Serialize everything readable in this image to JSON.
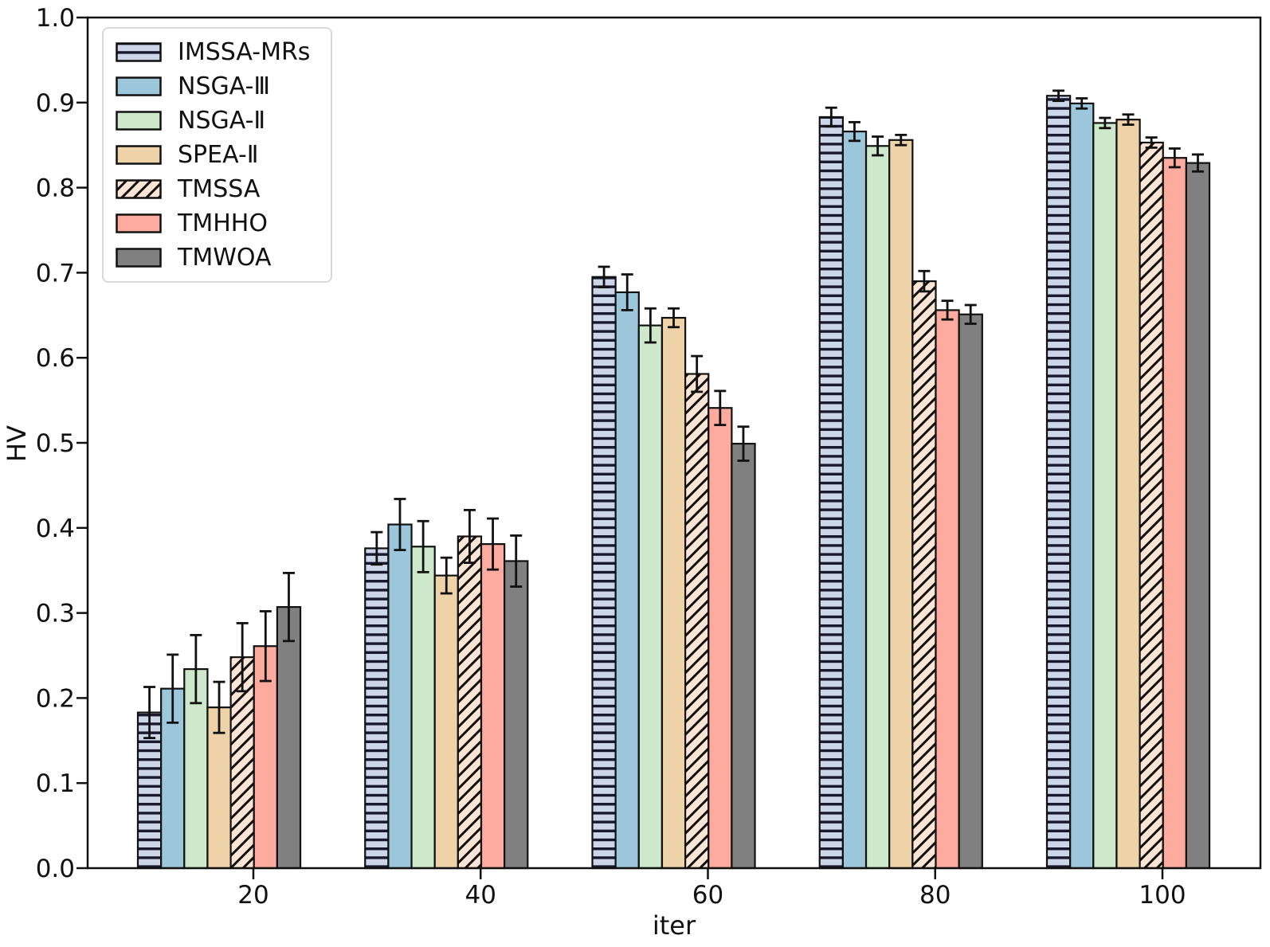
{
  "chart_data": {
    "type": "bar",
    "title": "",
    "xlabel": "iter",
    "ylabel": "HV",
    "categories": [
      20,
      40,
      60,
      80,
      100
    ],
    "xtick_labels": [
      "20",
      "40",
      "60",
      "80",
      "100"
    ],
    "ylim": [
      0.0,
      1.0
    ],
    "yticks": [
      0.0,
      0.1,
      0.2,
      0.3,
      0.4,
      0.5,
      0.6,
      0.7,
      0.8,
      0.9,
      1.0
    ],
    "ytick_labels": [
      "0.0",
      "0.1",
      "0.2",
      "0.3",
      "0.4",
      "0.5",
      "0.6",
      "0.7",
      "0.8",
      "0.9",
      "1.0"
    ],
    "grid": false,
    "error_bars": true,
    "legend_position": "upper left",
    "edge_color": "#111111",
    "series": [
      {
        "name": "IMSSA-MRs",
        "color": "#cdd5e8",
        "hatch": "horizontal",
        "values": [
          0.183,
          0.376,
          0.695,
          0.883,
          0.908
        ],
        "errors": [
          0.03,
          0.019,
          0.012,
          0.011,
          0.006
        ]
      },
      {
        "name": "NSGA-Ⅲ",
        "color": "#9cc7db",
        "hatch": null,
        "values": [
          0.211,
          0.404,
          0.677,
          0.866,
          0.899
        ],
        "errors": [
          0.04,
          0.03,
          0.021,
          0.011,
          0.006
        ]
      },
      {
        "name": "NSGA-Ⅱ",
        "color": "#cee8cc",
        "hatch": null,
        "values": [
          0.234,
          0.378,
          0.638,
          0.849,
          0.876
        ],
        "errors": [
          0.04,
          0.03,
          0.02,
          0.011,
          0.006
        ]
      },
      {
        "name": "SPEA-Ⅱ",
        "color": "#eed3a8",
        "hatch": null,
        "values": [
          0.189,
          0.344,
          0.647,
          0.856,
          0.88
        ],
        "errors": [
          0.03,
          0.021,
          0.011,
          0.006,
          0.006
        ]
      },
      {
        "name": "TMSSA",
        "color": "#fce5d5",
        "hatch": "diagonal",
        "values": [
          0.248,
          0.39,
          0.581,
          0.69,
          0.853
        ],
        "errors": [
          0.04,
          0.031,
          0.021,
          0.012,
          0.006
        ]
      },
      {
        "name": "TMHHO",
        "color": "#fcab9e",
        "hatch": null,
        "values": [
          0.261,
          0.381,
          0.541,
          0.656,
          0.835
        ],
        "errors": [
          0.041,
          0.03,
          0.02,
          0.011,
          0.011
        ]
      },
      {
        "name": "TMWOA",
        "color": "#808080",
        "hatch": null,
        "values": [
          0.307,
          0.361,
          0.499,
          0.651,
          0.829
        ],
        "errors": [
          0.04,
          0.03,
          0.02,
          0.011,
          0.01
        ]
      }
    ]
  }
}
